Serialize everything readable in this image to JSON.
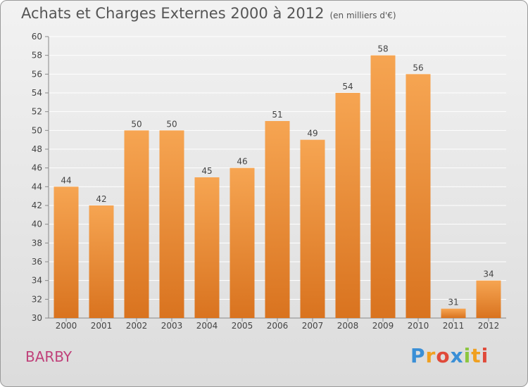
{
  "title": "Achats et Charges Externes 2000 à 2012",
  "unit": "(en milliers d'€)",
  "commune": "BARBY",
  "logo": {
    "letters": [
      "P",
      "r",
      "o",
      "x",
      "i",
      "t",
      "i"
    ],
    "colors": [
      "#3a8fd6",
      "#f0a020",
      "#e04a3a",
      "#3a8fd6",
      "#8cc63f",
      "#f0a020",
      "#e04a3a"
    ]
  },
  "colors": {
    "bar_top": "#f6a552",
    "bar_bottom": "#d9731f",
    "grid": "#ffffff"
  },
  "chart_data": {
    "type": "bar",
    "title": "Achats et Charges Externes 2000 à 2012",
    "categories": [
      "2000",
      "2001",
      "2002",
      "2003",
      "2004",
      "2005",
      "2006",
      "2007",
      "2008",
      "2009",
      "2010",
      "2011",
      "2012"
    ],
    "values": [
      44,
      42,
      50,
      50,
      45,
      46,
      51,
      49,
      54,
      58,
      56,
      31,
      34
    ],
    "ylim": [
      30,
      60
    ],
    "yticks": [
      30,
      32,
      34,
      36,
      38,
      40,
      42,
      44,
      46,
      48,
      50,
      52,
      54,
      56,
      58,
      60
    ],
    "grid": true
  }
}
